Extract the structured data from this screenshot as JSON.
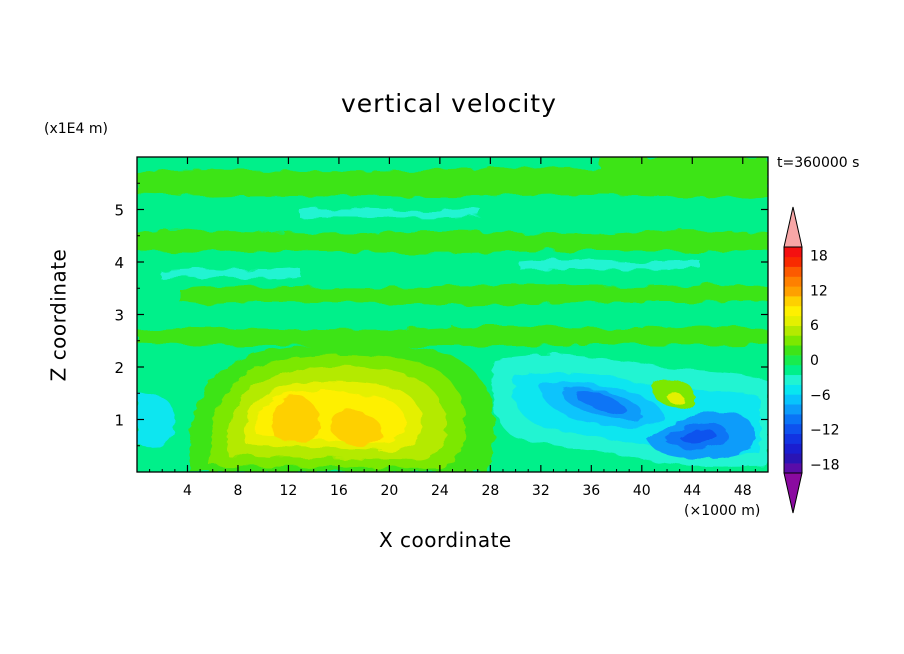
{
  "chart_data": {
    "type": "heatmap",
    "title": "vertical velocity",
    "xlabel": "X coordinate",
    "ylabel": "Z coordinate",
    "x_unit": "(×1000 m)",
    "y_unit": "(x1E4 m)",
    "time_label": "t=360000 s",
    "xlim": [
      0,
      50
    ],
    "ylim": [
      0,
      6
    ],
    "x_ticks": [
      4,
      8,
      12,
      16,
      20,
      24,
      28,
      32,
      36,
      40,
      44,
      48
    ],
    "y_ticks": [
      1,
      2,
      3,
      4,
      5
    ],
    "colorbar": {
      "levels": [
        -21,
        -19.5,
        -18,
        -16.5,
        -15,
        -13.5,
        -12,
        -10.5,
        -9,
        -7.5,
        -6,
        -4.5,
        -3,
        -1.5,
        0,
        1.5,
        3,
        4.5,
        6,
        7.5,
        9,
        10.5,
        12,
        13.5,
        15,
        16.5,
        18,
        19.5
      ],
      "tick_labels": [
        "18",
        "12",
        "6",
        "0",
        "−6",
        "−12",
        "−18"
      ],
      "tick_values": [
        18,
        12,
        6,
        0,
        -6,
        -12,
        -18
      ],
      "colors": [
        "#8a0aa0",
        "#5a0ca8",
        "#2a14b4",
        "#1a1ed0",
        "#1234e2",
        "#0e52ee",
        "#0a74f6",
        "#0c9cfa",
        "#08c4fc",
        "#08e6f0",
        "#20f4d2",
        "#00f08a",
        "#18ec4e",
        "#3ee418",
        "#7ce800",
        "#b4ea00",
        "#e4f000",
        "#fef000",
        "#fed000",
        "#fea000",
        "#fe8000",
        "#fc5a00",
        "#f82a00",
        "#f41010",
        "#f7a6a6"
      ],
      "extend": "both"
    },
    "features": [
      {
        "x": 15.5,
        "z": 1.2,
        "value": 9
      },
      {
        "x": 37.5,
        "z": 1.3,
        "value": -12
      },
      {
        "x": 45.5,
        "z": 0.8,
        "value": -12
      },
      {
        "x": 42.5,
        "z": 1.45,
        "value": 3
      },
      {
        "x": 2.0,
        "z": 1.05,
        "value": -4.5
      }
    ]
  }
}
